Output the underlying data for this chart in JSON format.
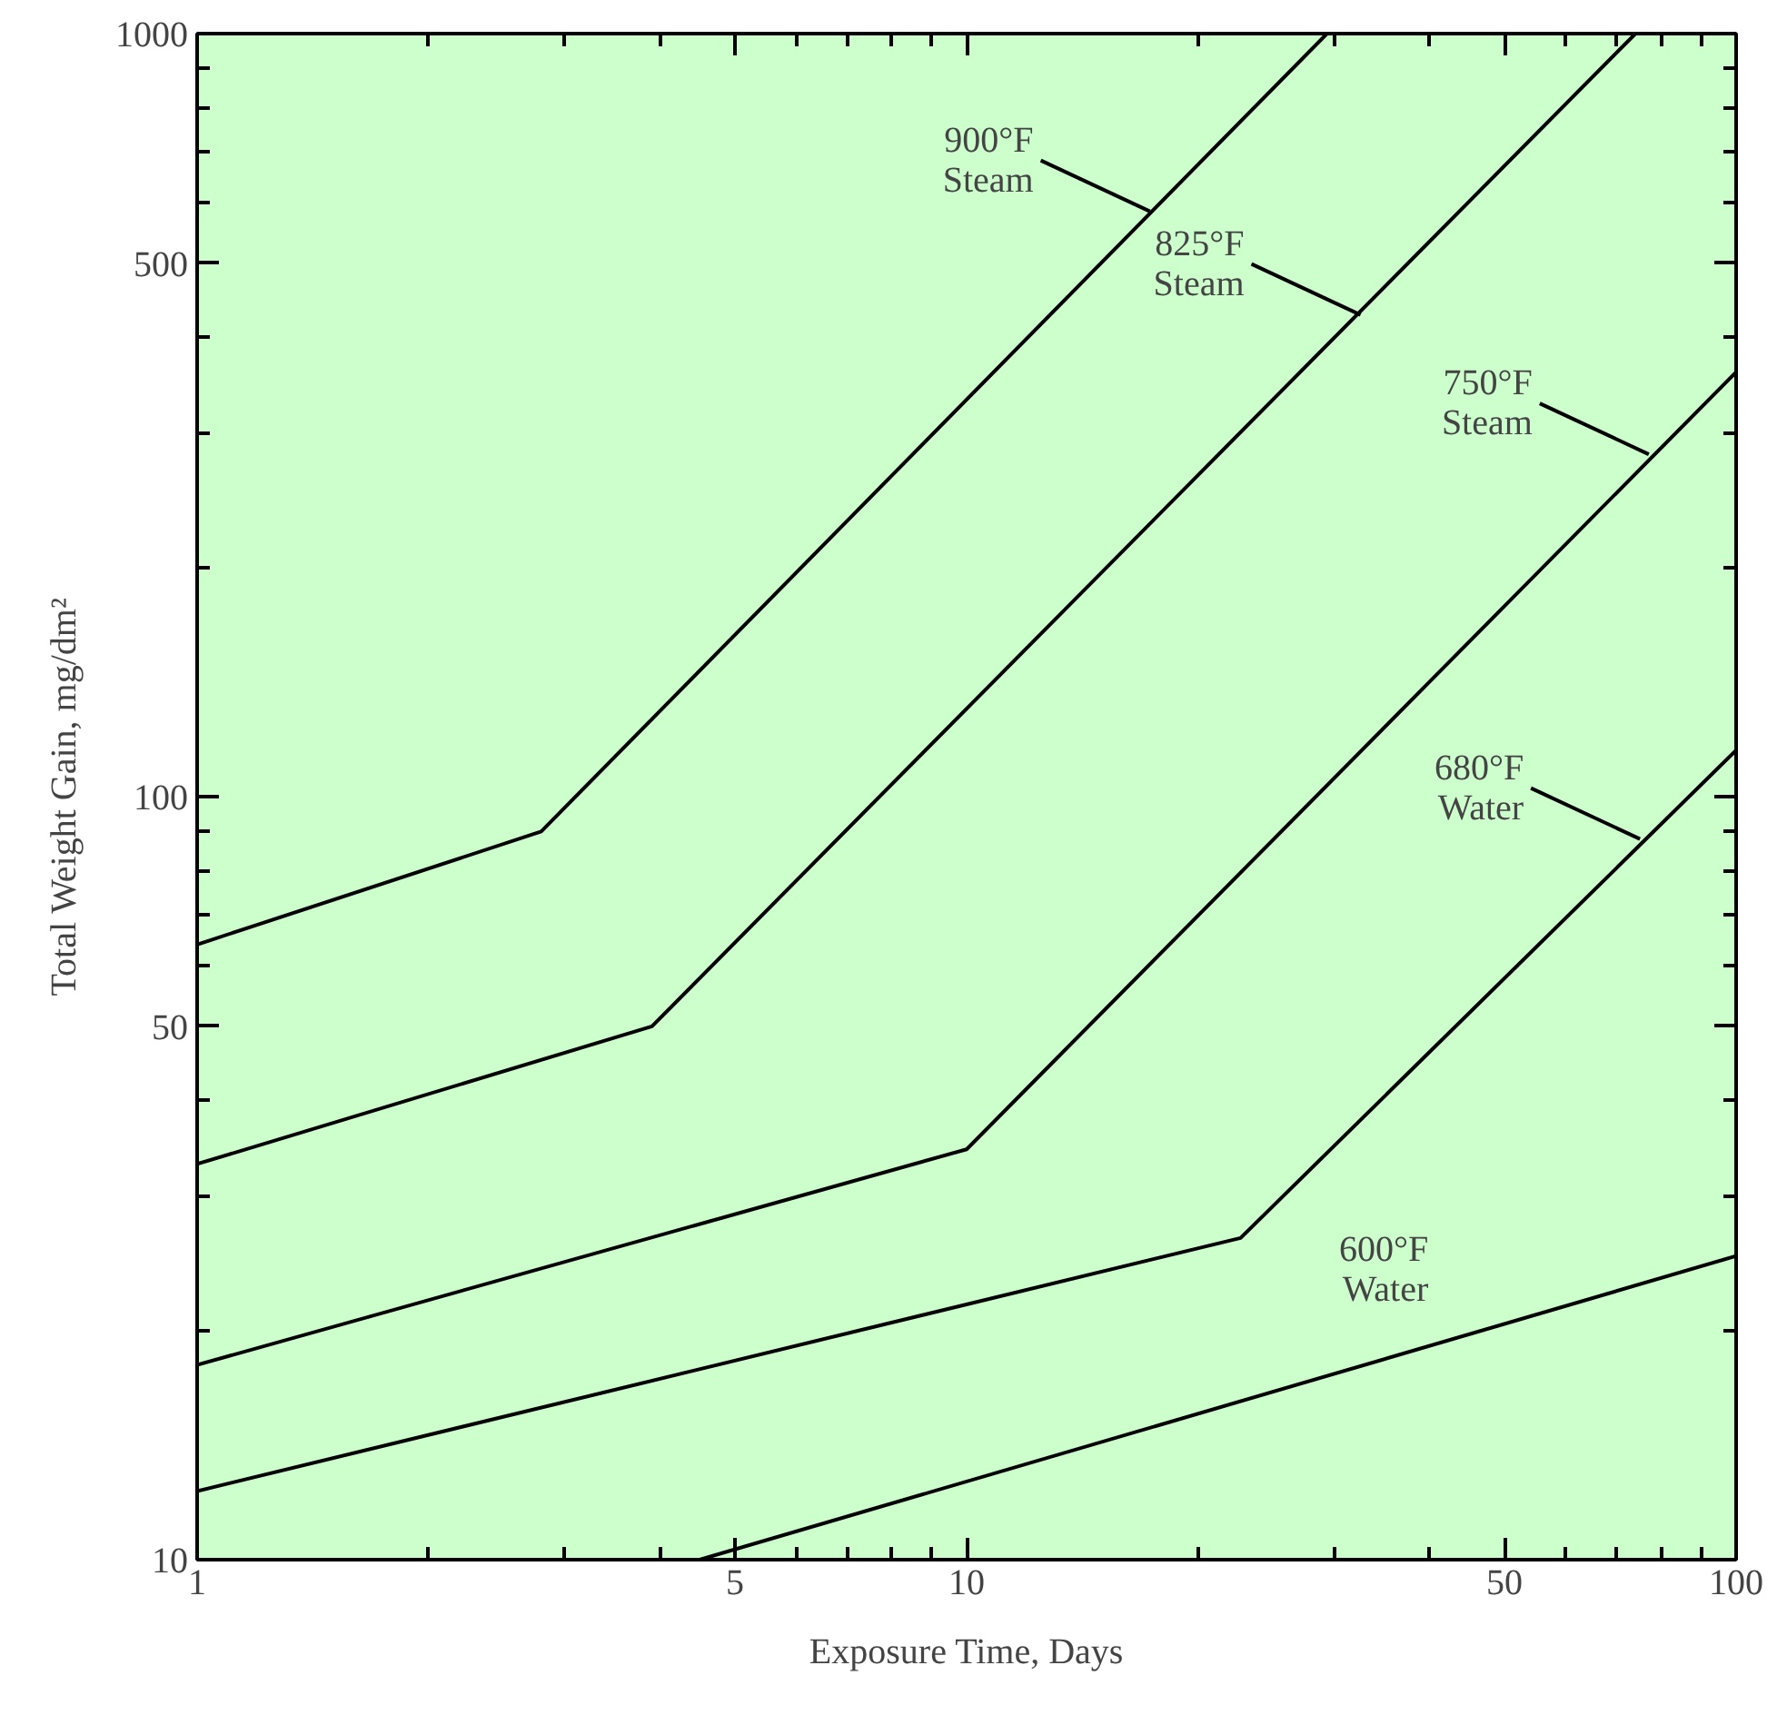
{
  "chart_data": {
    "type": "line",
    "xlabel": "Exposure Time, Days",
    "ylabel": "Total Weight Gain, mg/dm²",
    "log": "xy",
    "xlim": [
      1,
      100
    ],
    "ylim": [
      10,
      1000
    ],
    "xticks": [
      1,
      {
        "value": 2,
        "label": null
      },
      {
        "value": 3,
        "label": null
      },
      {
        "value": 4,
        "label": null
      },
      5,
      {
        "value": 6,
        "label": null
      },
      {
        "value": 7,
        "label": null
      },
      {
        "value": 8,
        "label": null
      },
      {
        "value": 9,
        "label": null
      },
      10,
      {
        "value": 20,
        "label": null
      },
      {
        "value": 30,
        "label": null
      },
      {
        "value": 40,
        "label": null
      },
      50,
      {
        "value": 60,
        "label": null
      },
      {
        "value": 70,
        "label": null
      },
      {
        "value": 80,
        "label": null
      },
      {
        "value": 90,
        "label": null
      },
      100
    ],
    "yticks": [
      10,
      {
        "value": 20,
        "label": null
      },
      {
        "value": 30,
        "label": null
      },
      {
        "value": 40,
        "label": null
      },
      50,
      {
        "value": 60,
        "label": null
      },
      {
        "value": 70,
        "label": null
      },
      {
        "value": 80,
        "label": null
      },
      {
        "value": 90,
        "label": null
      },
      100,
      {
        "value": 200,
        "label": null
      },
      {
        "value": 300,
        "label": null
      },
      {
        "value": 400,
        "label": null
      },
      500,
      {
        "value": 600,
        "label": null
      },
      {
        "value": 700,
        "label": null
      },
      {
        "value": 800,
        "label": null
      },
      {
        "value": 900,
        "label": null
      },
      1000
    ],
    "series": [
      {
        "color": "#000000",
        "x": [
          1,
          2.8,
          29.4
        ],
        "values": [
          64,
          90,
          1000
        ]
      },
      {
        "color": "#000000",
        "x": [
          1,
          3.9,
          74
        ],
        "values": [
          33,
          50,
          1000
        ]
      },
      {
        "color": "#000000",
        "x": [
          1,
          10,
          100
        ],
        "values": [
          18,
          34.5,
          360
        ]
      },
      {
        "color": "#000000",
        "x": [
          1,
          22.7,
          100
        ],
        "values": [
          12.3,
          26.4,
          115
        ]
      },
      {
        "color": "#000000",
        "x": [
          4.5,
          100
        ],
        "values": [
          10,
          25
        ]
      }
    ],
    "annotations": [
      {
        "text": "900°F\nSteam",
        "x": 17.3,
        "y": 585
      },
      {
        "text": "825°F\nSteam",
        "x": 32.5,
        "y": 428
      },
      {
        "text": "750°F\nSteam",
        "x": 77,
        "y": 281
      },
      {
        "text": "680°F\nWater",
        "x": 75,
        "y": 88
      },
      "600°F\nWater"
    ]
  }
}
